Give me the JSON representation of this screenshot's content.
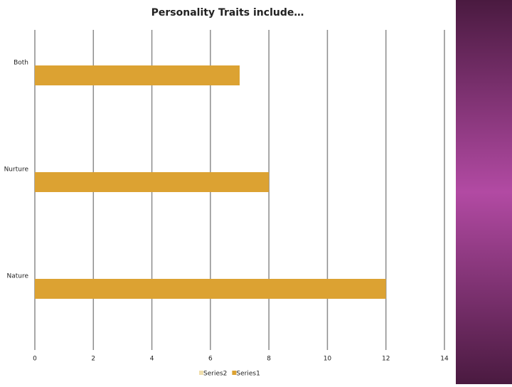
{
  "chart_data": {
    "type": "hbar",
    "title": "Personality Traits include…",
    "categories": [
      "Both",
      "Nurture",
      "Nature"
    ],
    "series": [
      {
        "name": "Series2",
        "color": "#f0dfae",
        "values": [
          null,
          null,
          null
        ]
      },
      {
        "name": "Series1",
        "color": "#dca232",
        "values": [
          7,
          8,
          12
        ]
      }
    ],
    "xlim": [
      0,
      14
    ],
    "xticks": [
      0,
      2,
      4,
      6,
      8,
      10,
      12,
      14
    ],
    "grid": true
  }
}
